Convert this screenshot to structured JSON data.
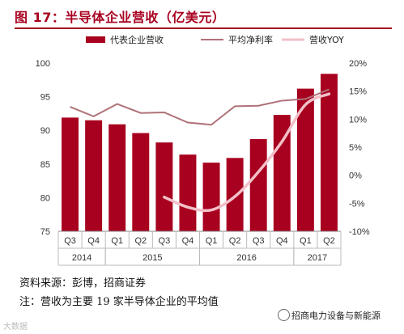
{
  "header": {
    "title": "图 17：半导体企业营收（亿美元）"
  },
  "footer": {
    "source": "资料来源：彭博，招商证券",
    "note": "注：营收为主要 19 家半导体企业的平均值",
    "brand": "招商电力设备与新能源",
    "watermark": "大数据"
  },
  "colors": {
    "bar": "#a8001f",
    "margin_line": "#b07278",
    "yoy_line": "#f2c0c8",
    "title": "#a8001f"
  },
  "chart_data": {
    "type": "bar",
    "title": "",
    "quarters": [
      "Q3",
      "Q4",
      "Q1",
      "Q2",
      "Q3",
      "Q4",
      "Q1",
      "Q2",
      "Q3",
      "Q4",
      "Q1",
      "Q2"
    ],
    "years": [
      {
        "label": "2014",
        "start": 0,
        "count": 2
      },
      {
        "label": "2015",
        "start": 2,
        "count": 4
      },
      {
        "label": "2016",
        "start": 6,
        "count": 4
      },
      {
        "label": "2017",
        "start": 10,
        "count": 2
      }
    ],
    "ylim": [
      75,
      100
    ],
    "yticks": [
      75,
      80,
      85,
      90,
      95,
      100
    ],
    "y2lim": [
      -10,
      20
    ],
    "y2ticks": [
      -10,
      -5,
      0,
      5,
      10,
      15,
      20
    ],
    "y2tick_labels": [
      "-10%",
      "-5%",
      "0%",
      "5%",
      "10%",
      "15%",
      "20%"
    ],
    "legend_position": "top",
    "series": [
      {
        "name": "代表企业营收",
        "type": "bar",
        "axis": "left",
        "values": [
          91.9,
          91.5,
          90.9,
          89.6,
          88.2,
          86.4,
          85.2,
          85.9,
          88.7,
          92.3,
          96.2,
          98.4
        ]
      },
      {
        "name": "平均净利率",
        "type": "line",
        "axis": "right",
        "values": [
          12.2,
          10.5,
          12.7,
          11.1,
          11.2,
          9.4,
          9.0,
          12.3,
          12.4,
          13.3,
          13.6,
          15.3
        ]
      },
      {
        "name": "营收YOY",
        "type": "line",
        "axis": "right",
        "values": [
          null,
          null,
          null,
          null,
          -3.9,
          -5.7,
          -6.2,
          -3.8,
          0.6,
          6.0,
          12.6,
          14.5
        ]
      }
    ]
  }
}
